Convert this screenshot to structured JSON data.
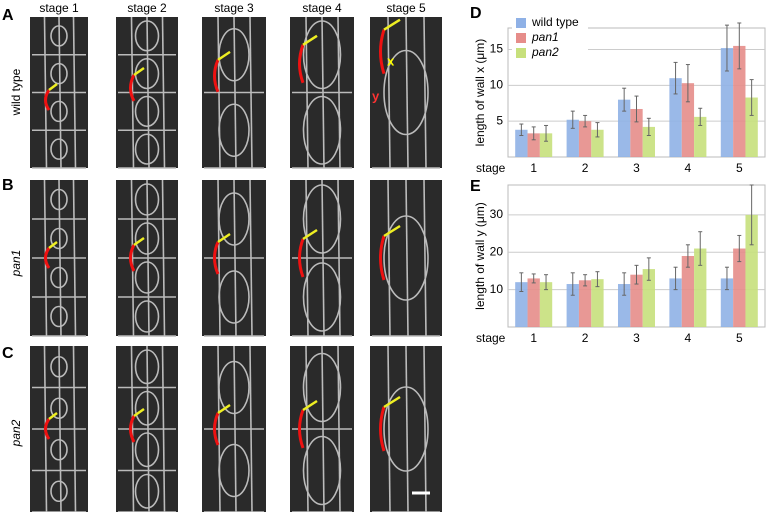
{
  "panels": {
    "letters": [
      "A",
      "B",
      "C",
      "D",
      "E"
    ],
    "stages": [
      "stage 1",
      "stage 2",
      "stage 3",
      "stage 4",
      "stage 5"
    ],
    "rows": [
      "wild type",
      "pan1",
      "pan2"
    ],
    "annotations": [
      "x",
      "y"
    ]
  },
  "chart_data": [
    {
      "type": "bar",
      "ylabel": "length of wall x (μm)",
      "xlabel": "stage",
      "categories": [
        "1",
        "2",
        "3",
        "4",
        "5"
      ],
      "series": [
        {
          "name": "wild type",
          "color": "#8fb1e6",
          "values": [
            3.8,
            5.2,
            8.0,
            11.0,
            15.2
          ],
          "errors": [
            0.8,
            1.2,
            1.6,
            2.2,
            3.2
          ]
        },
        {
          "name": "pan1",
          "color": "#e68d8a",
          "values": [
            3.3,
            5.0,
            6.7,
            10.3,
            15.5
          ],
          "errors": [
            0.9,
            0.8,
            1.8,
            2.6,
            3.2
          ]
        },
        {
          "name": "pan2",
          "color": "#c7e07c",
          "values": [
            3.3,
            3.8,
            4.2,
            5.6,
            8.3
          ],
          "errors": [
            1.1,
            1.0,
            1.2,
            1.2,
            2.5
          ]
        }
      ],
      "ylim": [
        0,
        18
      ],
      "yticks": [
        5,
        10,
        15
      ],
      "grid": true,
      "legend": "upper left"
    },
    {
      "type": "bar",
      "ylabel": "length of wall y (μm)",
      "xlabel": "stage",
      "categories": [
        "1",
        "2",
        "3",
        "4",
        "5"
      ],
      "series": [
        {
          "name": "wild type",
          "color": "#8fb1e6",
          "values": [
            12,
            11.5,
            11.5,
            13,
            13
          ],
          "errors": [
            2.5,
            3,
            3,
            3,
            3
          ]
        },
        {
          "name": "pan1",
          "color": "#e68d8a",
          "values": [
            13,
            12.5,
            14,
            19,
            21
          ],
          "errors": [
            1.2,
            1.5,
            2.5,
            3,
            3.5
          ]
        },
        {
          "name": "pan2",
          "color": "#c7e07c",
          "values": [
            12,
            12.8,
            15.5,
            21,
            30
          ],
          "errors": [
            2,
            2,
            3,
            4.5,
            8
          ]
        }
      ],
      "ylim": [
        0,
        38
      ],
      "yticks": [
        10,
        20,
        30
      ],
      "grid": true
    }
  ]
}
